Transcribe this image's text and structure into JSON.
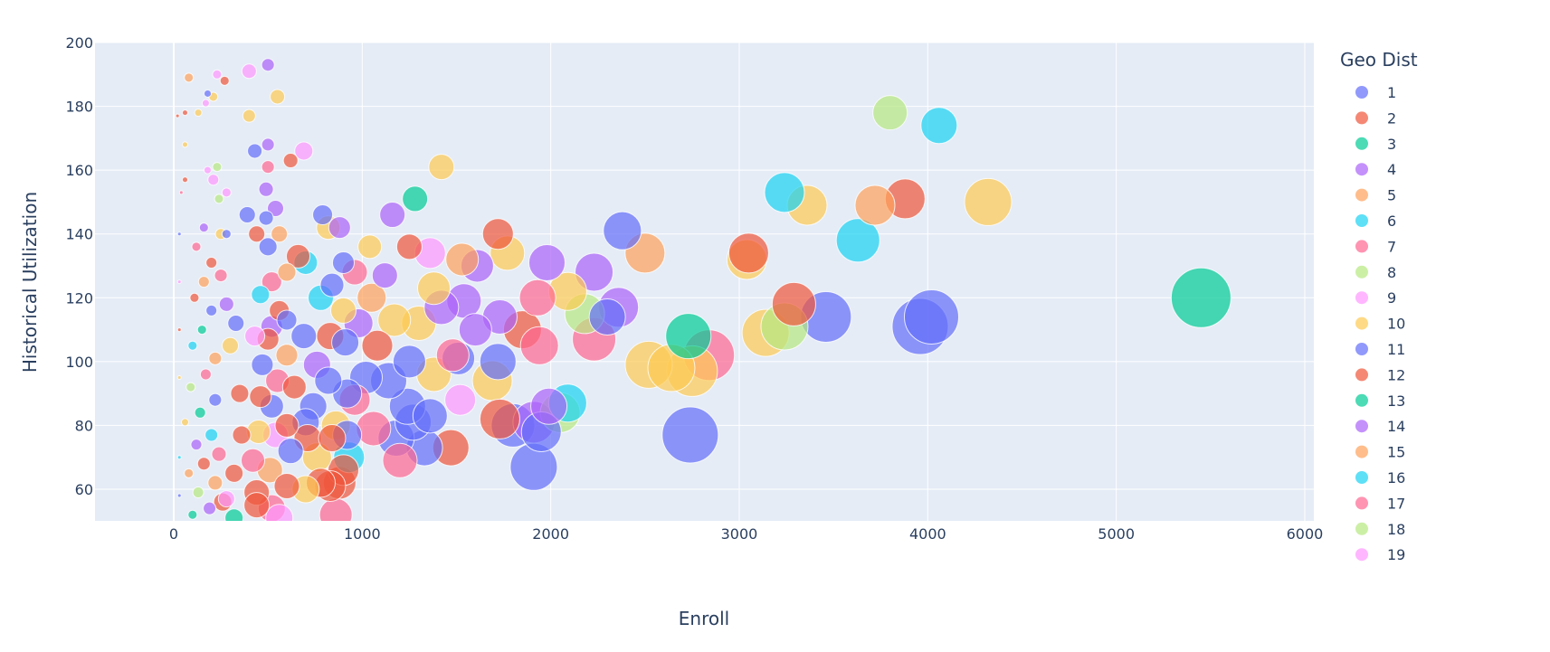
{
  "chart_data": {
    "type": "scatter",
    "subtype": "bubble",
    "title": "",
    "xlabel": "Enroll",
    "ylabel": "Historical Utilization",
    "xlim": [
      -420,
      6050
    ],
    "ylim": [
      50,
      200
    ],
    "x_ticks": [
      0,
      1000,
      2000,
      3000,
      4000,
      5000,
      6000
    ],
    "y_ticks": [
      60,
      80,
      100,
      120,
      140,
      160,
      180,
      200
    ],
    "grid": true,
    "legend": {
      "title": "Geo Dist",
      "position": "right",
      "entries": [
        "1",
        "2",
        "3",
        "4",
        "5",
        "6",
        "7",
        "8",
        "9",
        "10",
        "11",
        "12",
        "13",
        "14",
        "15",
        "16",
        "17",
        "18",
        "19"
      ]
    },
    "colors": {
      "1": "#636efa",
      "2": "#EF553B",
      "3": "#00cc96",
      "4": "#ab63fa",
      "5": "#FFA15A",
      "6": "#19d3f3",
      "7": "#FF6692",
      "8": "#B6E880",
      "9": "#FF97FF",
      "10": "#FECB52",
      "11": "#636efa",
      "12": "#EF553B",
      "13": "#00cc96",
      "14": "#ab63fa",
      "15": "#FFA15A",
      "16": "#19d3f3",
      "17": "#FF6692",
      "18": "#B6E880",
      "19": "#FF97FF"
    },
    "points": [
      {
        "x": 5450,
        "y": 120,
        "r": 33,
        "g": "13"
      },
      {
        "x": 4060,
        "y": 174,
        "r": 20,
        "g": "6"
      },
      {
        "x": 3800,
        "y": 178,
        "r": 19,
        "g": "8"
      },
      {
        "x": 4320,
        "y": 150,
        "r": 26,
        "g": "10"
      },
      {
        "x": 3880,
        "y": 151,
        "r": 22,
        "g": "2"
      },
      {
        "x": 3720,
        "y": 149,
        "r": 22,
        "g": "5"
      },
      {
        "x": 3360,
        "y": 149,
        "r": 22,
        "g": "10"
      },
      {
        "x": 3240,
        "y": 153,
        "r": 22,
        "g": "6"
      },
      {
        "x": 3630,
        "y": 138,
        "r": 24,
        "g": "6"
      },
      {
        "x": 3040,
        "y": 132,
        "r": 22,
        "g": "10"
      },
      {
        "x": 3050,
        "y": 134,
        "r": 22,
        "g": "2"
      },
      {
        "x": 3290,
        "y": 118,
        "r": 24,
        "g": "2"
      },
      {
        "x": 3140,
        "y": 109,
        "r": 26,
        "g": "10"
      },
      {
        "x": 3240,
        "y": 111,
        "r": 26,
        "g": "8"
      },
      {
        "x": 3460,
        "y": 114,
        "r": 28,
        "g": "11"
      },
      {
        "x": 4020,
        "y": 114,
        "r": 30,
        "g": "1"
      },
      {
        "x": 3960,
        "y": 111,
        "r": 31,
        "g": "11"
      },
      {
        "x": 2840,
        "y": 102,
        "r": 28,
        "g": "7"
      },
      {
        "x": 2730,
        "y": 108,
        "r": 25,
        "g": "3"
      },
      {
        "x": 2520,
        "y": 99,
        "r": 26,
        "g": "10"
      },
      {
        "x": 2640,
        "y": 98,
        "r": 26,
        "g": "10"
      },
      {
        "x": 2750,
        "y": 97,
        "r": 28,
        "g": "10"
      },
      {
        "x": 2740,
        "y": 77,
        "r": 31,
        "g": "11"
      },
      {
        "x": 2380,
        "y": 141,
        "r": 21,
        "g": "1"
      },
      {
        "x": 2500,
        "y": 134,
        "r": 22,
        "g": "5"
      },
      {
        "x": 2230,
        "y": 128,
        "r": 21,
        "g": "4"
      },
      {
        "x": 1980,
        "y": 131,
        "r": 20,
        "g": "4"
      },
      {
        "x": 2090,
        "y": 122,
        "r": 21,
        "g": "10"
      },
      {
        "x": 2360,
        "y": 117,
        "r": 22,
        "g": "4"
      },
      {
        "x": 2180,
        "y": 115,
        "r": 22,
        "g": "8"
      },
      {
        "x": 2300,
        "y": 114,
        "r": 20,
        "g": "11"
      },
      {
        "x": 2230,
        "y": 107,
        "r": 24,
        "g": "7"
      },
      {
        "x": 1930,
        "y": 120,
        "r": 20,
        "g": "7"
      },
      {
        "x": 1850,
        "y": 110,
        "r": 21,
        "g": "12"
      },
      {
        "x": 1940,
        "y": 105,
        "r": 21,
        "g": "7"
      },
      {
        "x": 2090,
        "y": 87,
        "r": 21,
        "g": "6"
      },
      {
        "x": 1990,
        "y": 86,
        "r": 20,
        "g": "4"
      },
      {
        "x": 2050,
        "y": 84,
        "r": 22,
        "g": "8"
      },
      {
        "x": 1720,
        "y": 140,
        "r": 17,
        "g": "2"
      },
      {
        "x": 1770,
        "y": 134,
        "r": 19,
        "g": "10"
      },
      {
        "x": 1610,
        "y": 130,
        "r": 18,
        "g": "4"
      },
      {
        "x": 1530,
        "y": 132,
        "r": 18,
        "g": "5"
      },
      {
        "x": 1730,
        "y": 114,
        "r": 19,
        "g": "4"
      },
      {
        "x": 1720,
        "y": 100,
        "r": 20,
        "g": "1"
      },
      {
        "x": 1690,
        "y": 94,
        "r": 22,
        "g": "10"
      },
      {
        "x": 1730,
        "y": 82,
        "r": 22,
        "g": "2"
      },
      {
        "x": 1800,
        "y": 80,
        "r": 24,
        "g": "11"
      },
      {
        "x": 1910,
        "y": 81,
        "r": 23,
        "g": "4"
      },
      {
        "x": 1950,
        "y": 78,
        "r": 22,
        "g": "1"
      },
      {
        "x": 1910,
        "y": 67,
        "r": 26,
        "g": "11"
      },
      {
        "x": 1420,
        "y": 161,
        "r": 14,
        "g": "10"
      },
      {
        "x": 1280,
        "y": 151,
        "r": 14,
        "g": "3"
      },
      {
        "x": 1160,
        "y": 146,
        "r": 14,
        "g": "4"
      },
      {
        "x": 1250,
        "y": 136,
        "r": 14,
        "g": "2"
      },
      {
        "x": 1360,
        "y": 134,
        "r": 17,
        "g": "9"
      },
      {
        "x": 1540,
        "y": 119,
        "r": 19,
        "g": "4"
      },
      {
        "x": 1600,
        "y": 110,
        "r": 18,
        "g": "4"
      },
      {
        "x": 1510,
        "y": 101,
        "r": 18,
        "g": "1"
      },
      {
        "x": 1480,
        "y": 102,
        "r": 18,
        "g": "7"
      },
      {
        "x": 1520,
        "y": 88,
        "r": 17,
        "g": "9"
      },
      {
        "x": 1470,
        "y": 73,
        "r": 20,
        "g": "2"
      },
      {
        "x": 1330,
        "y": 73,
        "r": 20,
        "g": "1"
      },
      {
        "x": 1200,
        "y": 69,
        "r": 19,
        "g": "7"
      },
      {
        "x": 1180,
        "y": 76,
        "r": 20,
        "g": "11"
      },
      {
        "x": 1270,
        "y": 81,
        "r": 20,
        "g": "1"
      },
      {
        "x": 1360,
        "y": 83,
        "r": 19,
        "g": "11"
      },
      {
        "x": 1240,
        "y": 86,
        "r": 20,
        "g": "11"
      },
      {
        "x": 1140,
        "y": 94,
        "r": 20,
        "g": "1"
      },
      {
        "x": 1380,
        "y": 96,
        "r": 19,
        "g": "10"
      },
      {
        "x": 1250,
        "y": 100,
        "r": 18,
        "g": "11"
      },
      {
        "x": 1300,
        "y": 112,
        "r": 19,
        "g": "10"
      },
      {
        "x": 1170,
        "y": 113,
        "r": 18,
        "g": "10"
      },
      {
        "x": 1380,
        "y": 123,
        "r": 18,
        "g": "10"
      },
      {
        "x": 1420,
        "y": 117,
        "r": 19,
        "g": "14"
      },
      {
        "x": 1040,
        "y": 136,
        "r": 13,
        "g": "10"
      },
      {
        "x": 1120,
        "y": 127,
        "r": 14,
        "g": "4"
      },
      {
        "x": 960,
        "y": 128,
        "r": 14,
        "g": "7"
      },
      {
        "x": 1050,
        "y": 120,
        "r": 16,
        "g": "5"
      },
      {
        "x": 980,
        "y": 112,
        "r": 16,
        "g": "4"
      },
      {
        "x": 1080,
        "y": 105,
        "r": 17,
        "g": "12"
      },
      {
        "x": 1020,
        "y": 95,
        "r": 18,
        "g": "1"
      },
      {
        "x": 960,
        "y": 88,
        "r": 17,
        "g": "7"
      },
      {
        "x": 1060,
        "y": 79,
        "r": 19,
        "g": "7"
      },
      {
        "x": 930,
        "y": 70,
        "r": 17,
        "g": "6"
      },
      {
        "x": 880,
        "y": 62,
        "r": 18,
        "g": "2"
      },
      {
        "x": 860,
        "y": 52,
        "r": 18,
        "g": "7"
      },
      {
        "x": 790,
        "y": 146,
        "r": 11,
        "g": "1"
      },
      {
        "x": 820,
        "y": 142,
        "r": 13,
        "g": "10"
      },
      {
        "x": 880,
        "y": 142,
        "r": 12,
        "g": "4"
      },
      {
        "x": 700,
        "y": 131,
        "r": 13,
        "g": "6"
      },
      {
        "x": 660,
        "y": 133,
        "r": 13,
        "g": "2"
      },
      {
        "x": 900,
        "y": 131,
        "r": 12,
        "g": "1"
      },
      {
        "x": 840,
        "y": 124,
        "r": 13,
        "g": "1"
      },
      {
        "x": 780,
        "y": 120,
        "r": 14,
        "g": "6"
      },
      {
        "x": 900,
        "y": 116,
        "r": 14,
        "g": "10"
      },
      {
        "x": 690,
        "y": 108,
        "r": 14,
        "g": "1"
      },
      {
        "x": 830,
        "y": 108,
        "r": 15,
        "g": "12"
      },
      {
        "x": 910,
        "y": 106,
        "r": 15,
        "g": "1"
      },
      {
        "x": 760,
        "y": 99,
        "r": 15,
        "g": "4"
      },
      {
        "x": 820,
        "y": 94,
        "r": 15,
        "g": "1"
      },
      {
        "x": 920,
        "y": 90,
        "r": 16,
        "g": "1"
      },
      {
        "x": 740,
        "y": 86,
        "r": 15,
        "g": "1"
      },
      {
        "x": 700,
        "y": 81,
        "r": 15,
        "g": "11"
      },
      {
        "x": 860,
        "y": 80,
        "r": 16,
        "g": "10"
      },
      {
        "x": 920,
        "y": 77,
        "r": 16,
        "g": "1"
      },
      {
        "x": 710,
        "y": 76,
        "r": 15,
        "g": "2"
      },
      {
        "x": 840,
        "y": 76,
        "r": 15,
        "g": "12"
      },
      {
        "x": 760,
        "y": 70,
        "r": 16,
        "g": "10"
      },
      {
        "x": 900,
        "y": 66,
        "r": 17,
        "g": "2"
      },
      {
        "x": 780,
        "y": 62,
        "r": 16,
        "g": "12"
      },
      {
        "x": 830,
        "y": 61,
        "r": 17,
        "g": "12"
      },
      {
        "x": 700,
        "y": 60,
        "r": 15,
        "g": "10"
      },
      {
        "x": 620,
        "y": 163,
        "r": 8,
        "g": "2"
      },
      {
        "x": 690,
        "y": 166,
        "r": 10,
        "g": "9"
      },
      {
        "x": 550,
        "y": 183,
        "r": 8,
        "g": "10"
      },
      {
        "x": 500,
        "y": 193,
        "r": 7,
        "g": "4"
      },
      {
        "x": 400,
        "y": 191,
        "r": 8,
        "g": "9"
      },
      {
        "x": 400,
        "y": 177,
        "r": 7,
        "g": "10"
      },
      {
        "x": 500,
        "y": 168,
        "r": 7,
        "g": "4"
      },
      {
        "x": 430,
        "y": 166,
        "r": 8,
        "g": "1"
      },
      {
        "x": 500,
        "y": 161,
        "r": 7,
        "g": "7"
      },
      {
        "x": 490,
        "y": 154,
        "r": 8,
        "g": "4"
      },
      {
        "x": 540,
        "y": 148,
        "r": 9,
        "g": "4"
      },
      {
        "x": 490,
        "y": 145,
        "r": 8,
        "g": "1"
      },
      {
        "x": 390,
        "y": 146,
        "r": 9,
        "g": "1"
      },
      {
        "x": 440,
        "y": 140,
        "r": 9,
        "g": "12"
      },
      {
        "x": 560,
        "y": 140,
        "r": 9,
        "g": "5"
      },
      {
        "x": 500,
        "y": 136,
        "r": 10,
        "g": "1"
      },
      {
        "x": 600,
        "y": 128,
        "r": 10,
        "g": "5"
      },
      {
        "x": 520,
        "y": 125,
        "r": 11,
        "g": "7"
      },
      {
        "x": 460,
        "y": 121,
        "r": 10,
        "g": "6"
      },
      {
        "x": 560,
        "y": 116,
        "r": 11,
        "g": "2"
      },
      {
        "x": 600,
        "y": 113,
        "r": 11,
        "g": "1"
      },
      {
        "x": 520,
        "y": 111,
        "r": 12,
        "g": "4"
      },
      {
        "x": 430,
        "y": 108,
        "r": 11,
        "g": "9"
      },
      {
        "x": 500,
        "y": 107,
        "r": 12,
        "g": "2"
      },
      {
        "x": 600,
        "y": 102,
        "r": 12,
        "g": "5"
      },
      {
        "x": 470,
        "y": 99,
        "r": 12,
        "g": "1"
      },
      {
        "x": 550,
        "y": 94,
        "r": 13,
        "g": "7"
      },
      {
        "x": 640,
        "y": 92,
        "r": 13,
        "g": "2"
      },
      {
        "x": 460,
        "y": 89,
        "r": 12,
        "g": "12"
      },
      {
        "x": 520,
        "y": 86,
        "r": 13,
        "g": "1"
      },
      {
        "x": 600,
        "y": 80,
        "r": 13,
        "g": "2"
      },
      {
        "x": 450,
        "y": 78,
        "r": 13,
        "g": "10"
      },
      {
        "x": 540,
        "y": 77,
        "r": 14,
        "g": "9"
      },
      {
        "x": 620,
        "y": 72,
        "r": 14,
        "g": "1"
      },
      {
        "x": 420,
        "y": 69,
        "r": 13,
        "g": "7"
      },
      {
        "x": 510,
        "y": 66,
        "r": 14,
        "g": "5"
      },
      {
        "x": 600,
        "y": 61,
        "r": 14,
        "g": "12"
      },
      {
        "x": 440,
        "y": 59,
        "r": 14,
        "g": "2"
      },
      {
        "x": 520,
        "y": 54,
        "r": 15,
        "g": "7"
      },
      {
        "x": 440,
        "y": 55,
        "r": 14,
        "g": "12"
      },
      {
        "x": 560,
        "y": 51,
        "r": 15,
        "g": "9"
      },
      {
        "x": 350,
        "y": 90,
        "r": 10,
        "g": "12"
      },
      {
        "x": 360,
        "y": 77,
        "r": 10,
        "g": "2"
      },
      {
        "x": 320,
        "y": 65,
        "r": 10,
        "g": "12"
      },
      {
        "x": 260,
        "y": 56,
        "r": 10,
        "g": "2"
      },
      {
        "x": 300,
        "y": 105,
        "r": 9,
        "g": "10"
      },
      {
        "x": 330,
        "y": 112,
        "r": 9,
        "g": "1"
      },
      {
        "x": 280,
        "y": 118,
        "r": 8,
        "g": "14"
      },
      {
        "x": 250,
        "y": 127,
        "r": 7,
        "g": "17"
      },
      {
        "x": 250,
        "y": 140,
        "r": 6,
        "g": "10"
      },
      {
        "x": 240,
        "y": 151,
        "r": 5,
        "g": "8"
      },
      {
        "x": 210,
        "y": 157,
        "r": 6,
        "g": "9"
      },
      {
        "x": 230,
        "y": 161,
        "r": 5,
        "g": "8"
      },
      {
        "x": 280,
        "y": 153,
        "r": 5,
        "g": "9"
      },
      {
        "x": 280,
        "y": 140,
        "r": 5,
        "g": "1"
      },
      {
        "x": 270,
        "y": 188,
        "r": 5,
        "g": "2"
      },
      {
        "x": 230,
        "y": 190,
        "r": 5,
        "g": "9"
      },
      {
        "x": 80,
        "y": 189,
        "r": 5,
        "g": "5"
      },
      {
        "x": 180,
        "y": 184,
        "r": 4,
        "g": "1"
      },
      {
        "x": 210,
        "y": 183,
        "r": 5,
        "g": "10"
      },
      {
        "x": 170,
        "y": 181,
        "r": 4,
        "g": "9"
      },
      {
        "x": 130,
        "y": 178,
        "r": 4,
        "g": "10"
      },
      {
        "x": 60,
        "y": 178,
        "r": 3,
        "g": "2"
      },
      {
        "x": 20,
        "y": 177,
        "r": 2,
        "g": "2"
      },
      {
        "x": 60,
        "y": 168,
        "r": 3,
        "g": "10"
      },
      {
        "x": 180,
        "y": 160,
        "r": 4,
        "g": "9"
      },
      {
        "x": 60,
        "y": 157,
        "r": 3,
        "g": "2"
      },
      {
        "x": 40,
        "y": 153,
        "r": 2,
        "g": "7"
      },
      {
        "x": 160,
        "y": 142,
        "r": 5,
        "g": "14"
      },
      {
        "x": 120,
        "y": 136,
        "r": 5,
        "g": "7"
      },
      {
        "x": 200,
        "y": 131,
        "r": 6,
        "g": "2"
      },
      {
        "x": 160,
        "y": 125,
        "r": 6,
        "g": "15"
      },
      {
        "x": 110,
        "y": 120,
        "r": 5,
        "g": "12"
      },
      {
        "x": 200,
        "y": 116,
        "r": 6,
        "g": "11"
      },
      {
        "x": 150,
        "y": 110,
        "r": 5,
        "g": "13"
      },
      {
        "x": 100,
        "y": 105,
        "r": 5,
        "g": "16"
      },
      {
        "x": 220,
        "y": 101,
        "r": 7,
        "g": "15"
      },
      {
        "x": 170,
        "y": 96,
        "r": 6,
        "g": "17"
      },
      {
        "x": 90,
        "y": 92,
        "r": 5,
        "g": "18"
      },
      {
        "x": 220,
        "y": 88,
        "r": 7,
        "g": "1"
      },
      {
        "x": 140,
        "y": 84,
        "r": 6,
        "g": "3"
      },
      {
        "x": 60,
        "y": 81,
        "r": 4,
        "g": "10"
      },
      {
        "x": 200,
        "y": 77,
        "r": 7,
        "g": "6"
      },
      {
        "x": 120,
        "y": 74,
        "r": 6,
        "g": "14"
      },
      {
        "x": 240,
        "y": 71,
        "r": 8,
        "g": "7"
      },
      {
        "x": 160,
        "y": 68,
        "r": 7,
        "g": "12"
      },
      {
        "x": 80,
        "y": 65,
        "r": 5,
        "g": "5"
      },
      {
        "x": 220,
        "y": 62,
        "r": 8,
        "g": "15"
      },
      {
        "x": 130,
        "y": 59,
        "r": 6,
        "g": "18"
      },
      {
        "x": 280,
        "y": 57,
        "r": 9,
        "g": "9"
      },
      {
        "x": 190,
        "y": 54,
        "r": 7,
        "g": "4"
      },
      {
        "x": 100,
        "y": 52,
        "r": 5,
        "g": "13"
      },
      {
        "x": 320,
        "y": 51,
        "r": 10,
        "g": "3"
      },
      {
        "x": 30,
        "y": 140,
        "r": 2,
        "g": "1"
      },
      {
        "x": 30,
        "y": 125,
        "r": 2,
        "g": "9"
      },
      {
        "x": 30,
        "y": 110,
        "r": 2,
        "g": "2"
      },
      {
        "x": 30,
        "y": 95,
        "r": 2,
        "g": "10"
      },
      {
        "x": 30,
        "y": 70,
        "r": 2,
        "g": "6"
      },
      {
        "x": 30,
        "y": 58,
        "r": 2,
        "g": "1"
      }
    ]
  }
}
